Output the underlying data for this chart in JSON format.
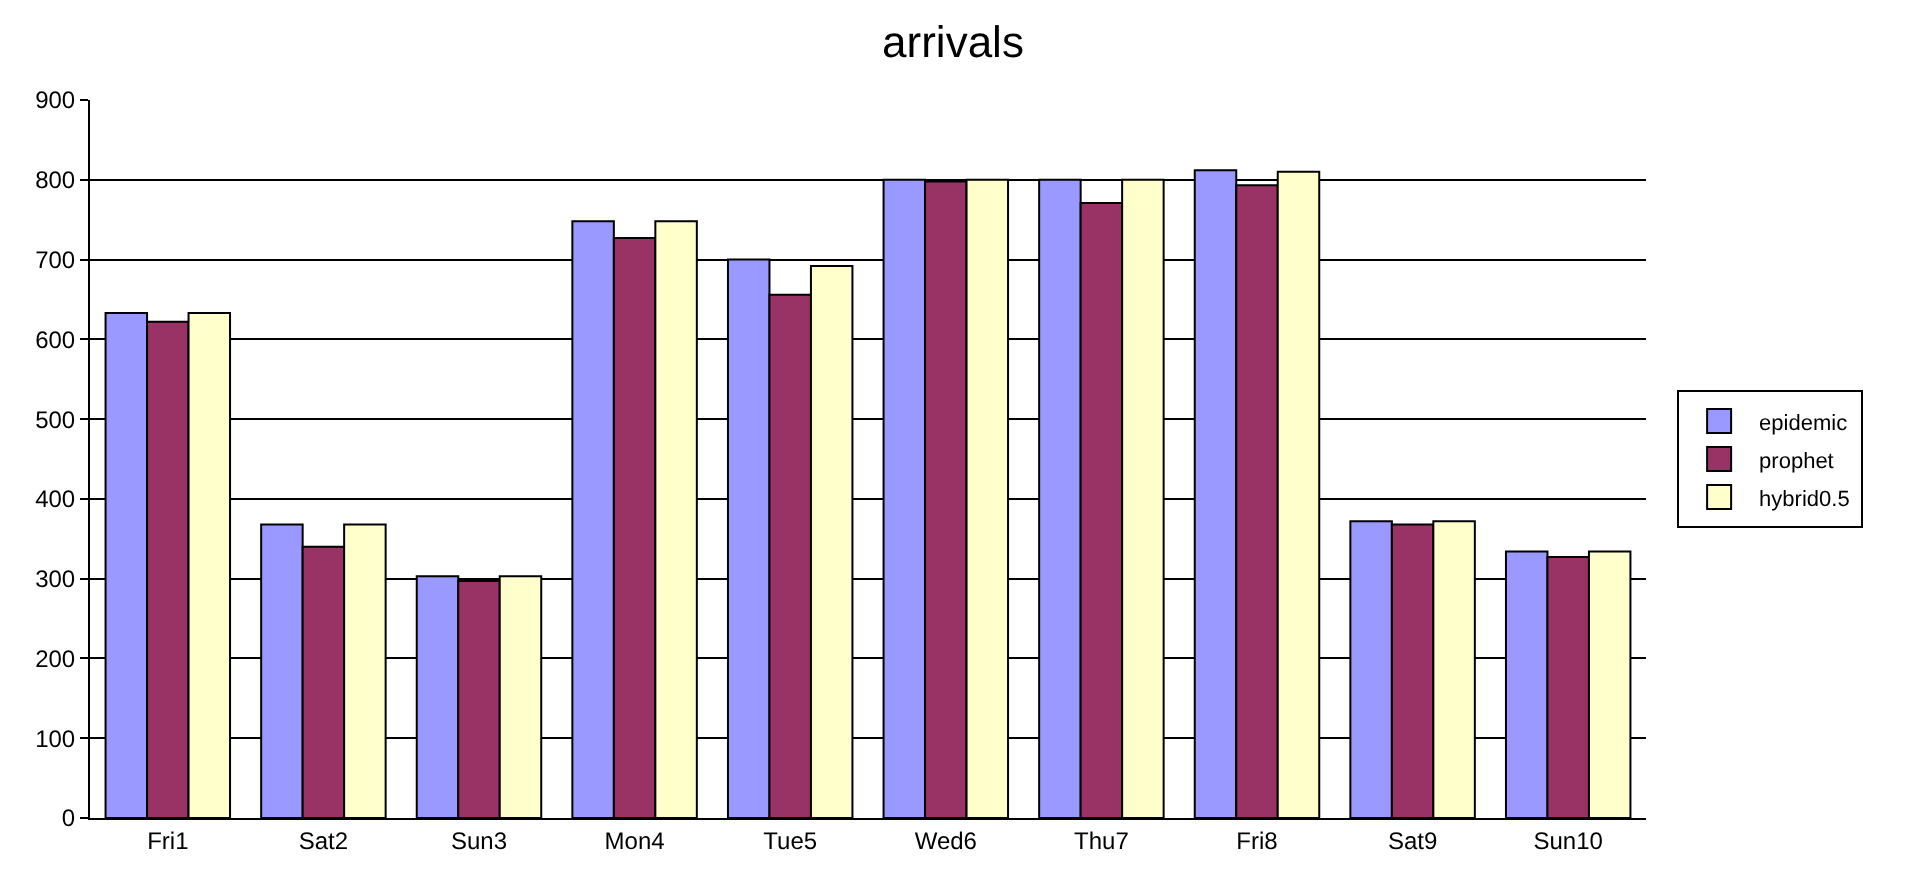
{
  "chart_data": {
    "type": "bar",
    "title": "arrivals",
    "categories": [
      "Fri1",
      "Sat2",
      "Sun3",
      "Mon4",
      "Tue5",
      "Wed6",
      "Thu7",
      "Fri8",
      "Sat9",
      "Sun10"
    ],
    "series": [
      {
        "name": "epidemic",
        "color": "#9999ff",
        "values": [
          633,
          368,
          303,
          748,
          700,
          800,
          800,
          812,
          372,
          334
        ]
      },
      {
        "name": "prophet",
        "color": "#993366",
        "values": [
          622,
          340,
          297,
          727,
          656,
          798,
          771,
          793,
          368,
          327
        ]
      },
      {
        "name": "hybrid0.5",
        "color": "#ffffcc",
        "values": [
          633,
          368,
          303,
          748,
          692,
          800,
          800,
          810,
          372,
          334
        ]
      }
    ],
    "ylim": [
      0,
      900
    ],
    "yticks": [
      0,
      100,
      200,
      300,
      400,
      500,
      600,
      700,
      800,
      900
    ],
    "grid": "y",
    "legend": "right"
  }
}
